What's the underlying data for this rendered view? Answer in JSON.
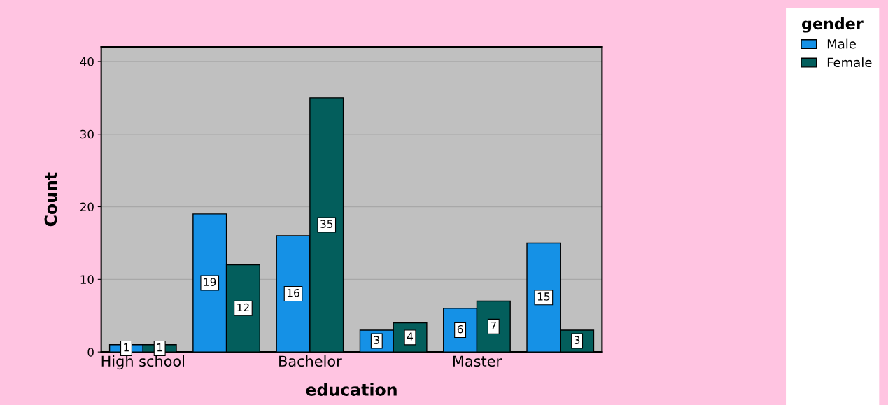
{
  "chart_data": {
    "type": "bar",
    "xlabel": "education",
    "ylabel": "Count",
    "legend_title": "gender",
    "categories": [
      "High school",
      null,
      "Bachelor",
      null,
      "Master",
      null
    ],
    "series": [
      {
        "name": "Male",
        "color": "#1591e6",
        "values": [
          1,
          19,
          16,
          3,
          6,
          15
        ]
      },
      {
        "name": "Female",
        "color": "#035e5c",
        "values": [
          1,
          12,
          35,
          4,
          7,
          3
        ]
      }
    ],
    "ylim": [
      0,
      42
    ],
    "yticks": [
      0,
      10,
      20,
      30,
      40
    ],
    "grid": "y",
    "legend": "top right",
    "data_labels": true
  }
}
